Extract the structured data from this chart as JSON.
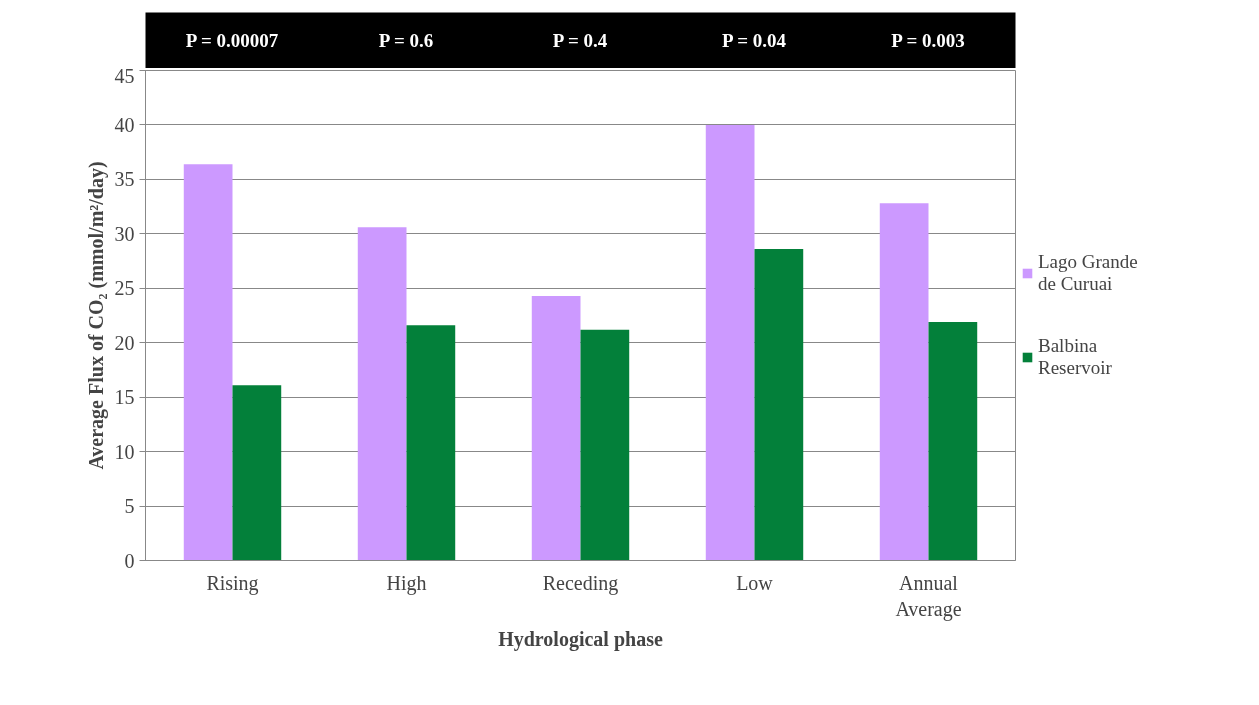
{
  "chart_data": {
    "type": "bar",
    "xlabel": "Hydrological phase",
    "ylabel": "Average Flux of CO₂ (mmol/m²/day)",
    "categories": [
      "Rising",
      "High",
      "Receding",
      "Low",
      "Annual Average"
    ],
    "series": [
      {
        "name": "Lago Grande de Curuai",
        "color": "#cc99ff",
        "values": [
          36.4,
          30.6,
          24.3,
          40.0,
          32.8
        ]
      },
      {
        "name": "Balbina Reservoir",
        "color": "#03803a",
        "values": [
          16.1,
          21.6,
          21.2,
          28.6,
          21.9
        ]
      }
    ],
    "annotations": [
      "P = 0.00007",
      "P = 0.6",
      "P = 0.4",
      "P = 0.04",
      "P = 0.003"
    ],
    "ylim": [
      0,
      45
    ],
    "yticks": [
      0,
      5,
      10,
      15,
      20,
      25,
      30,
      35,
      40,
      45
    ],
    "grid": "y",
    "legend": "right"
  }
}
